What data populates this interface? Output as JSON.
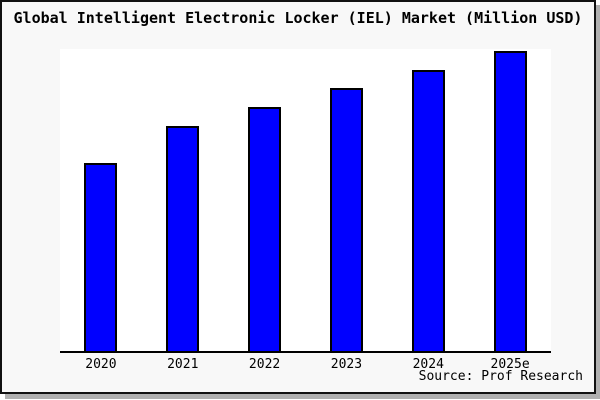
{
  "frame": {
    "border_color": "#111111",
    "shadow_color": "#b0b0b0",
    "background": "#f8f8f8"
  },
  "chart_data": {
    "type": "bar",
    "title": "Global Intelligent Electronic Locker (IEL) Market (Million USD)",
    "categories": [
      "2020",
      "2021",
      "2022",
      "2023",
      "2024",
      "2025e"
    ],
    "values": [
      100,
      120,
      130,
      140,
      150,
      160
    ],
    "value_scale_note": "no y-axis ticks shown in image; values are relative estimates with 2020 = 100",
    "xlabel": "",
    "ylabel": "",
    "ylim": [
      0,
      161
    ],
    "grid": false,
    "legend": null,
    "y_axis_visible": false,
    "bar_color": "#0000ff",
    "bar_border_color": "#000000",
    "plot_background": "#ffffff",
    "source": "Source: Prof Research"
  }
}
